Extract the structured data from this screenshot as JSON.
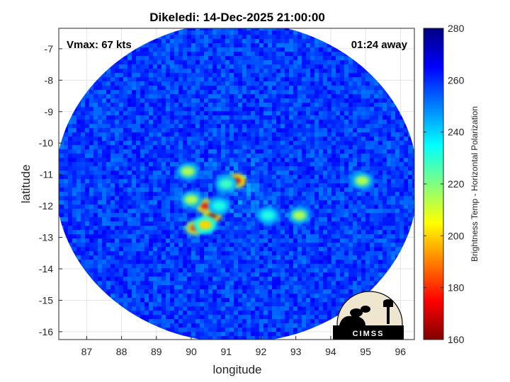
{
  "chart_data": {
    "type": "heatmap",
    "title": "Dikeledi: 14-Dec-2025 21:00:00",
    "xlabel": "longitude",
    "ylabel": "latitude",
    "xlim": [
      86.2,
      96.4
    ],
    "ylim": [
      -16.25,
      -6.35
    ],
    "xticks": [
      87,
      88,
      89,
      90,
      91,
      92,
      93,
      94,
      95,
      96
    ],
    "yticks": [
      -7,
      -8,
      -9,
      -10,
      -11,
      -12,
      -13,
      -14,
      -15,
      -16
    ],
    "grid": true,
    "swath": {
      "center_lon": 91.3,
      "center_lat": -11.25,
      "radius_lon": 5.2,
      "radius_lat": 5.1
    },
    "eye_center": {
      "lon": 91.3,
      "lat": -11.3
    },
    "background_value": 258,
    "features": [
      {
        "lon": 91.3,
        "lat": -11.2,
        "value": 170
      },
      {
        "lon": 90.6,
        "lat": -12.3,
        "value": 165
      },
      {
        "lon": 90.4,
        "lat": -12.0,
        "value": 175
      },
      {
        "lon": 90.1,
        "lat": -12.7,
        "value": 180
      },
      {
        "lon": 90.4,
        "lat": -12.6,
        "value": 200
      },
      {
        "lon": 90.0,
        "lat": -11.8,
        "value": 215
      },
      {
        "lon": 89.9,
        "lat": -10.9,
        "value": 215
      },
      {
        "lon": 91.0,
        "lat": -11.3,
        "value": 228
      },
      {
        "lon": 93.1,
        "lat": -12.3,
        "value": 215
      },
      {
        "lon": 94.9,
        "lat": -11.2,
        "value": 215
      },
      {
        "lon": 92.2,
        "lat": -12.3,
        "value": 232
      },
      {
        "lon": 90.8,
        "lat": -12.0,
        "value": 232
      }
    ],
    "colorbar": {
      "label": "Brightness Temp - Horizontal Polarization",
      "range": [
        160,
        280
      ],
      "ticks": [
        280,
        260,
        240,
        220,
        200,
        180,
        160
      ],
      "colormap": "jet"
    }
  },
  "annotations": {
    "vmax": "Vmax: 67 kts",
    "away": "01:24 away"
  },
  "logo": {
    "text": "CIMSS"
  }
}
